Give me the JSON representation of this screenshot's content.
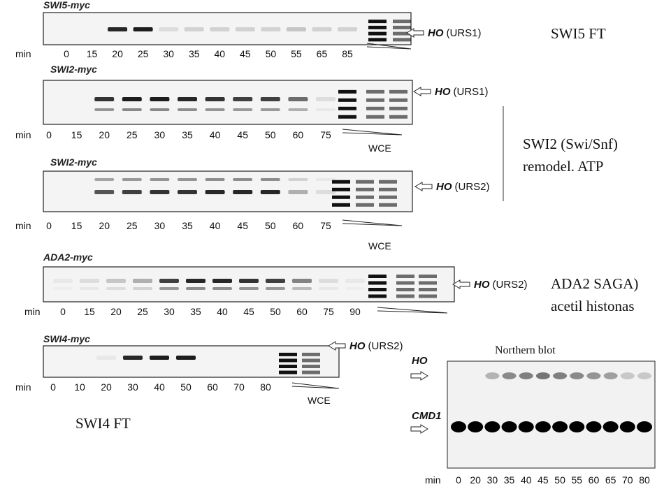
{
  "panels": [
    {
      "label": "SWI5-myc",
      "locus": "HO",
      "site": "(URS1)",
      "axis_label": "min",
      "times": [
        "0",
        "15",
        "20",
        "25",
        "30",
        "35",
        "40",
        "45",
        "50",
        "55",
        "65",
        "85"
      ]
    },
    {
      "label": "SWI2-myc",
      "locus": "HO",
      "site": "(URS1)",
      "axis_label": "min",
      "times": [
        "0",
        "15",
        "20",
        "25",
        "30",
        "35",
        "40",
        "45",
        "50",
        "60",
        "75"
      ],
      "extract": "WCE"
    },
    {
      "label": "SWI2-myc",
      "locus": "HO",
      "site": "(URS2)",
      "axis_label": "min",
      "times": [
        "0",
        "15",
        "20",
        "25",
        "30",
        "35",
        "40",
        "45",
        "50",
        "60",
        "75"
      ],
      "extract": "WCE"
    },
    {
      "label": "ADA2-myc",
      "locus": "HO",
      "site": "(URS2)",
      "axis_label": "min",
      "times": [
        "0",
        "15",
        "20",
        "25",
        "30",
        "35",
        "40",
        "45",
        "50",
        "60",
        "75",
        "90"
      ]
    },
    {
      "label": "SWI4-myc",
      "locus": "HO",
      "site": "(URS2)",
      "axis_label": "min",
      "times": [
        "0",
        "10",
        "20",
        "30",
        "40",
        "50",
        "60",
        "70",
        "80"
      ],
      "extract": "WCE"
    }
  ],
  "northern": {
    "title": "Northern blot",
    "markers": [
      "HO",
      "CMD1"
    ],
    "axis_label": "min",
    "times": [
      "0",
      "20",
      "30",
      "35",
      "40",
      "45",
      "50",
      "55",
      "60",
      "65",
      "70",
      "80"
    ]
  },
  "annotations": [
    "SWI5  FT",
    "SWI2 (Swi/Snf)",
    "remodel. ATP",
    "ADA2 SAGA)",
    "acetil histonas",
    "SWI4  FT"
  ]
}
